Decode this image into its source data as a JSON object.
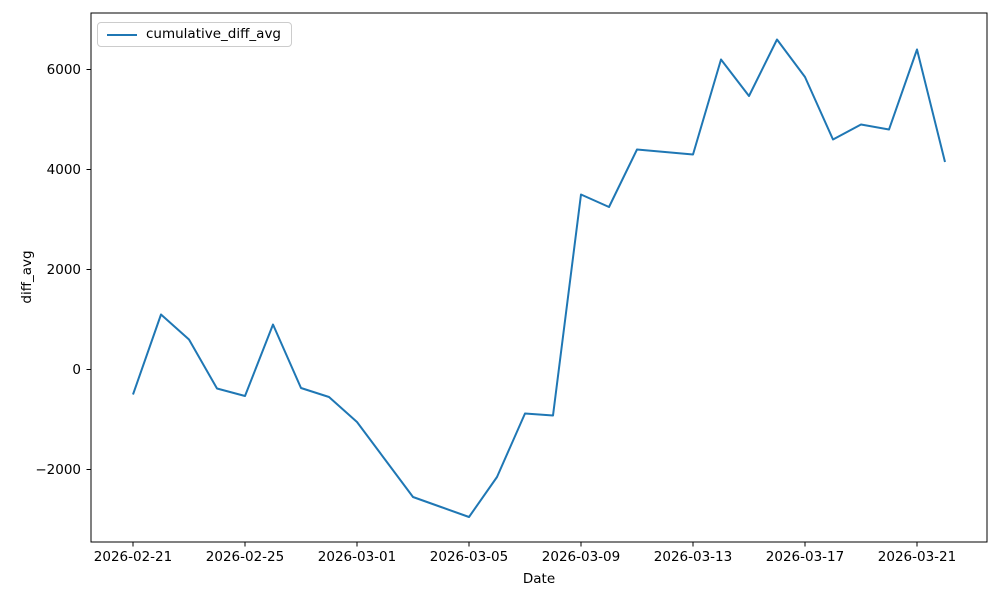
{
  "chart_data": {
    "type": "line",
    "title": "",
    "xlabel": "Date",
    "ylabel": "diff_avg",
    "grid": false,
    "background": "#ffffff",
    "legend": {
      "position": "upper left",
      "entries": [
        "cumulative_diff_avg"
      ]
    },
    "x_ticks": [
      "2026-02-21",
      "2026-02-25",
      "2026-03-01",
      "2026-03-05",
      "2026-03-09",
      "2026-03-13",
      "2026-03-17",
      "2026-03-21"
    ],
    "y_ticks": [
      -2000,
      0,
      2000,
      4000,
      6000
    ],
    "xlim_days": [
      -1.5,
      30.5
    ],
    "ylim": [
      -3450,
      7130
    ],
    "series": [
      {
        "name": "cumulative_diff_avg",
        "color": "#1f77b4",
        "x": [
          "2026-02-21",
          "2026-02-22",
          "2026-02-23",
          "2026-02-24",
          "2026-02-25",
          "2026-02-26",
          "2026-02-27",
          "2026-02-28",
          "2026-03-01",
          "2026-03-02",
          "2026-03-03",
          "2026-03-04",
          "2026-03-05",
          "2026-03-06",
          "2026-03-07",
          "2026-03-08",
          "2026-03-09",
          "2026-03-10",
          "2026-03-11",
          "2026-03-12",
          "2026-03-13",
          "2026-03-14",
          "2026-03-15",
          "2026-03-16",
          "2026-03-17",
          "2026-03-18",
          "2026-03-19",
          "2026-03-20",
          "2026-03-21",
          "2026-03-22"
        ],
        "y": [
          -500,
          1100,
          600,
          -380,
          -530,
          900,
          -370,
          -550,
          -1050,
          -1800,
          -2550,
          -2750,
          -2950,
          -2150,
          -880,
          -920,
          3500,
          3250,
          4400,
          4350,
          4300,
          6200,
          5470,
          6600,
          5850,
          4600,
          4900,
          4800,
          6400,
          4150
        ]
      }
    ]
  }
}
